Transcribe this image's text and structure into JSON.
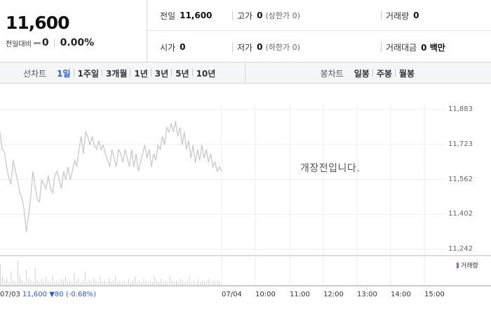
{
  "quote": {
    "price": "11,600",
    "change_label": "전일대비",
    "change": "0",
    "change_pct": "0.00%"
  },
  "info": {
    "prev_close": {
      "label": "전일",
      "value": "11,600"
    },
    "high": {
      "label": "고가",
      "value": "0",
      "sub": "(상한가 0)"
    },
    "volume": {
      "label": "거래량",
      "value": "0"
    },
    "open": {
      "label": "시가",
      "value": "0"
    },
    "low": {
      "label": "저가",
      "value": "0",
      "sub": "(하한가 0)"
    },
    "amount": {
      "label": "거래대금",
      "value": "0 백만"
    }
  },
  "line_tabs": {
    "title": "선차트",
    "items": [
      "1일",
      "1주일",
      "3개월",
      "1년",
      "3년",
      "5년",
      "10년"
    ],
    "active": "1일"
  },
  "candle_tabs": {
    "title": "봉차트",
    "items": [
      "일봉",
      "주봉",
      "월봉"
    ]
  },
  "chart_data": {
    "type": "line",
    "y_ticks": [
      "11,883",
      "11,723",
      "11,562",
      "11,402",
      "11,242"
    ],
    "ylim": [
      11242,
      11883
    ],
    "grid": true,
    "series_color": "#c8c8c8",
    "volume_color": "#8a6bd0",
    "volume_label": "거래량",
    "closed_message": "개장전입니다.",
    "x_ticks": [
      "07/04",
      "10:00",
      "11:00",
      "12:00",
      "13:00",
      "14:00",
      "15:00"
    ],
    "prev_day": {
      "date": "07/03",
      "close": "11,600",
      "change": "▼80",
      "change_pct": "(-0.68%)"
    },
    "prices": [
      11780,
      11700,
      11690,
      11620,
      11570,
      11540,
      11650,
      11600,
      11560,
      11500,
      11480,
      11420,
      11320,
      11400,
      11480,
      11600,
      11530,
      11470,
      11460,
      11560,
      11540,
      11520,
      11580,
      11520,
      11500,
      11580,
      11600,
      11560,
      11520,
      11600,
      11560,
      11620,
      11560,
      11600,
      11650,
      11620,
      11700,
      11760,
      11680,
      11780,
      11760,
      11720,
      11760,
      11720,
      11700,
      11740,
      11700,
      11720,
      11680,
      11650,
      11620,
      11700,
      11660,
      11620,
      11700,
      11680,
      11640,
      11700,
      11660,
      11620,
      11700,
      11620,
      11680,
      11600,
      11640,
      11680,
      11720,
      11660,
      11700,
      11620,
      11680,
      11650,
      11720,
      11700,
      11760,
      11720,
      11800,
      11780,
      11820,
      11780,
      11830,
      11760,
      11800,
      11720,
      11780,
      11700,
      11740,
      11660,
      11720,
      11640,
      11700,
      11650,
      11720,
      11660,
      11700,
      11640,
      11680,
      11620,
      11640,
      11600,
      11620,
      11600
    ],
    "volumes": [
      12,
      5,
      3,
      4,
      2,
      8,
      3,
      2,
      14,
      6,
      3,
      2,
      9,
      4,
      3,
      2,
      10,
      3,
      2,
      4,
      2,
      5,
      3,
      2,
      6,
      2,
      3,
      2,
      4,
      3,
      5,
      2,
      3,
      2,
      7,
      3,
      4,
      2,
      3,
      8,
      2,
      3,
      2,
      4,
      3,
      2,
      5,
      2,
      3,
      2,
      4,
      2,
      3,
      6,
      2,
      3,
      2,
      3,
      2,
      4,
      2,
      3,
      5,
      2,
      3,
      2,
      4,
      3,
      2,
      3,
      2,
      5,
      3,
      2,
      4,
      2,
      3,
      2,
      6,
      3,
      2,
      3,
      2,
      4,
      3,
      2,
      3,
      5,
      2,
      3,
      2,
      4,
      2,
      3,
      2,
      3,
      4,
      2,
      3,
      2,
      3,
      2
    ]
  }
}
